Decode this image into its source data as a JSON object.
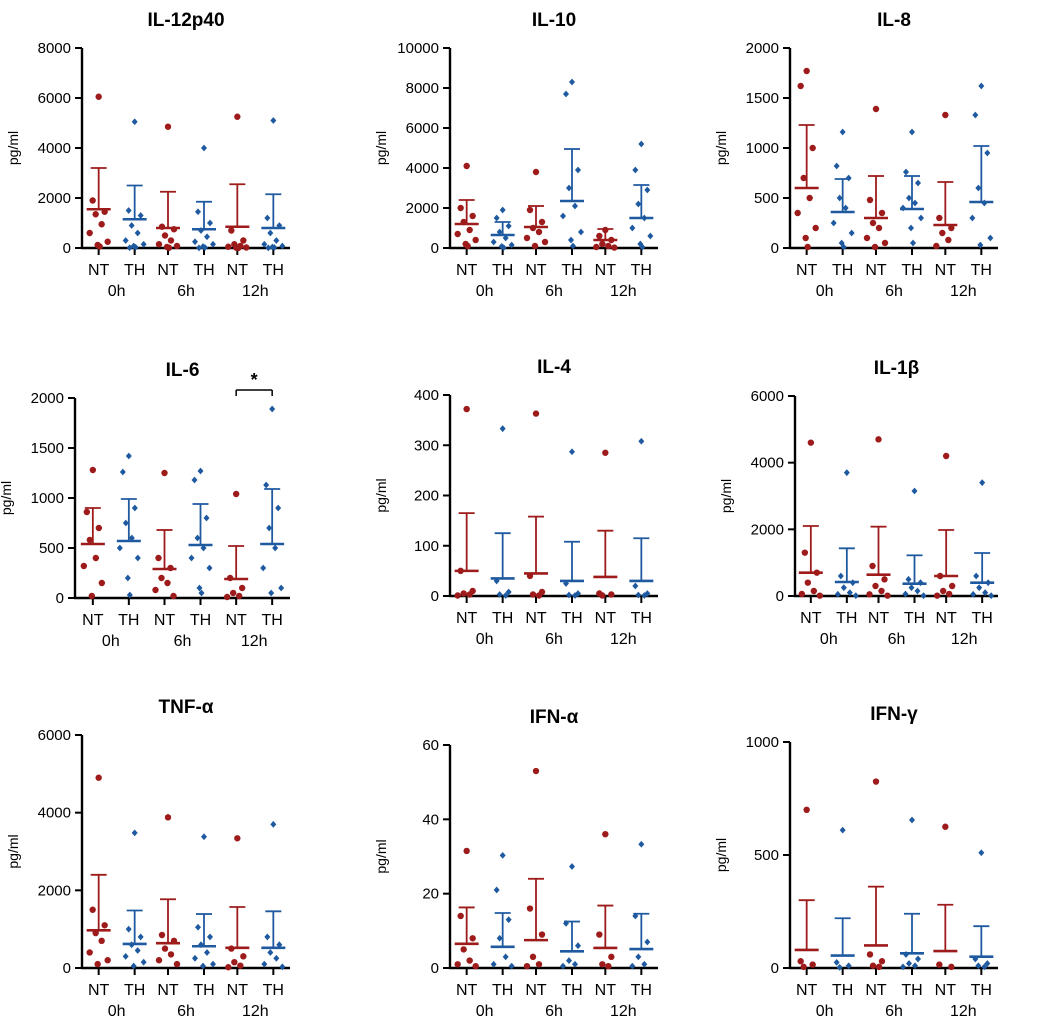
{
  "chart_data": [
    {
      "type": "scatter",
      "title": "IL-12p40",
      "ylabel": "pg/ml",
      "ylim": [
        0,
        8000
      ],
      "yticks": [
        "0",
        "2000",
        "4000",
        "6000",
        "8000"
      ],
      "categories": [
        "0h",
        "6h",
        "12h"
      ],
      "group_labels": [
        "NT",
        "TH"
      ],
      "colors": {
        "NT": "#9e1b1b",
        "TH": "#1f5aa0"
      },
      "groups": [
        {
          "time": "0h",
          "NT": {
            "mean": 1550,
            "sd_upper": 3200,
            "points": [
              6050,
              1900,
              1450,
              1350,
              950,
              600,
              250,
              120,
              60
            ]
          },
          "TH": {
            "mean": 1150,
            "sd_upper": 2500,
            "points": [
              5050,
              1500,
              1300,
              900,
              600,
              300,
              150,
              80,
              30,
              10
            ]
          }
        },
        {
          "time": "6h",
          "NT": {
            "mean": 800,
            "sd_upper": 2250,
            "points": [
              4850,
              850,
              750,
              500,
              300,
              150,
              80,
              40,
              10
            ]
          },
          "TH": {
            "mean": 750,
            "sd_upper": 1850,
            "points": [
              4000,
              1450,
              1000,
              700,
              450,
              250,
              150,
              60,
              20,
              5
            ]
          }
        },
        {
          "time": "12h",
          "NT": {
            "mean": 850,
            "sd_upper": 2550,
            "points": [
              5250,
              700,
              300,
              150,
              80,
              50,
              20,
              10,
              5
            ]
          },
          "TH": {
            "mean": 800,
            "sd_upper": 2150,
            "points": [
              5100,
              1200,
              900,
              600,
              300,
              150,
              80,
              40,
              20,
              5
            ]
          }
        }
      ],
      "significance": null
    },
    {
      "type": "scatter",
      "title": "IL-10",
      "ylabel": "pg/ml",
      "ylim": [
        0,
        10000
      ],
      "yticks": [
        "0",
        "2000",
        "4000",
        "6000",
        "8000",
        "10000"
      ],
      "categories": [
        "0h",
        "6h",
        "12h"
      ],
      "group_labels": [
        "NT",
        "TH"
      ],
      "colors": {
        "NT": "#9e1b1b",
        "TH": "#1f5aa0"
      },
      "groups": [
        {
          "time": "0h",
          "NT": {
            "mean": 1200,
            "sd_upper": 2400,
            "points": [
              4100,
              2000,
              1600,
              1300,
              900,
              700,
              400,
              200,
              100
            ]
          },
          "TH": {
            "mean": 650,
            "sd_upper": 1300,
            "points": [
              1900,
              1500,
              1100,
              800,
              500,
              300,
              150,
              80,
              20
            ]
          }
        },
        {
          "time": "6h",
          "NT": {
            "mean": 1050,
            "sd_upper": 2100,
            "points": [
              3800,
              1900,
              1300,
              1000,
              800,
              500,
              300,
              100
            ]
          },
          "TH": {
            "mean": 2350,
            "sd_upper": 4950,
            "points": [
              8300,
              7700,
              3900,
              3000,
              2100,
              1600,
              800,
              400,
              100
            ]
          }
        },
        {
          "time": "12h",
          "NT": {
            "mean": 400,
            "sd_upper": 950,
            "points": [
              900,
              600,
              400,
              200,
              100,
              50,
              20
            ]
          },
          "TH": {
            "mean": 1500,
            "sd_upper": 3150,
            "points": [
              5200,
              3900,
              2900,
              2200,
              1500,
              1000,
              600,
              200,
              50
            ]
          }
        }
      ],
      "significance": null
    },
    {
      "type": "scatter",
      "title": "IL-8",
      "ylabel": "pg/ml",
      "ylim": [
        0,
        2000
      ],
      "yticks": [
        "0",
        "500",
        "1000",
        "1500",
        "2000"
      ],
      "categories": [
        "0h",
        "6h",
        "12h"
      ],
      "group_labels": [
        "NT",
        "TH"
      ],
      "colors": {
        "NT": "#9e1b1b",
        "TH": "#1f5aa0"
      },
      "groups": [
        {
          "time": "0h",
          "NT": {
            "mean": 600,
            "sd_upper": 1230,
            "points": [
              1770,
              1620,
              1000,
              700,
              500,
              350,
              200,
              100,
              10
            ]
          },
          "TH": {
            "mean": 360,
            "sd_upper": 690,
            "points": [
              1160,
              820,
              700,
              500,
              400,
              250,
              150,
              50,
              10
            ]
          }
        },
        {
          "time": "6h",
          "NT": {
            "mean": 300,
            "sd_upper": 720,
            "points": [
              1390,
              480,
              350,
              250,
              200,
              100,
              50,
              10
            ]
          },
          "TH": {
            "mean": 390,
            "sd_upper": 720,
            "points": [
              1160,
              760,
              650,
              500,
              450,
              400,
              300,
              200,
              50
            ]
          }
        },
        {
          "time": "12h",
          "NT": {
            "mean": 230,
            "sd_upper": 660,
            "points": [
              1330,
              300,
              200,
              150,
              80,
              20
            ]
          },
          "TH": {
            "mean": 460,
            "sd_upper": 1020,
            "points": [
              1620,
              1330,
              950,
              600,
              450,
              300,
              100,
              30
            ]
          }
        }
      ],
      "significance": null
    },
    {
      "type": "scatter",
      "title": "IL-6",
      "ylabel": "pg/ml",
      "ylim": [
        0,
        2000
      ],
      "yticks": [
        "0",
        "500",
        "1000",
        "1500",
        "2000"
      ],
      "categories": [
        "0h",
        "6h",
        "12h"
      ],
      "group_labels": [
        "NT",
        "TH"
      ],
      "colors": {
        "NT": "#9e1b1b",
        "TH": "#1f5aa0"
      },
      "groups": [
        {
          "time": "0h",
          "NT": {
            "mean": 540,
            "sd_upper": 900,
            "points": [
              1280,
              860,
              700,
              580,
              400,
              320,
              150,
              20
            ]
          },
          "TH": {
            "mean": 570,
            "sd_upper": 990,
            "points": [
              1420,
              1260,
              900,
              750,
              600,
              500,
              400,
              200,
              30
            ]
          }
        },
        {
          "time": "6h",
          "NT": {
            "mean": 290,
            "sd_upper": 680,
            "points": [
              1250,
              400,
              300,
              200,
              150,
              80,
              20
            ]
          },
          "TH": {
            "mean": 530,
            "sd_upper": 940,
            "points": [
              1270,
              1180,
              800,
              600,
              500,
              400,
              300,
              100,
              50
            ]
          }
        },
        {
          "time": "12h",
          "NT": {
            "mean": 190,
            "sd_upper": 520,
            "points": [
              1040,
              200,
              100,
              50,
              20,
              10
            ]
          },
          "TH": {
            "mean": 540,
            "sd_upper": 1090,
            "points": [
              1890,
              1130,
              900,
              700,
              500,
              300,
              100,
              50
            ]
          }
        }
      ],
      "significance": {
        "time": "12h",
        "label": "*"
      }
    },
    {
      "type": "scatter",
      "title": "IL-4",
      "ylabel": "pg/ml",
      "ylim": [
        0,
        400
      ],
      "yticks": [
        "0",
        "100",
        "200",
        "300",
        "400"
      ],
      "categories": [
        "0h",
        "6h",
        "12h"
      ],
      "group_labels": [
        "NT",
        "TH"
      ],
      "colors": {
        "NT": "#9e1b1b",
        "TH": "#1f5aa0"
      },
      "groups": [
        {
          "time": "0h",
          "NT": {
            "mean": 50,
            "sd_upper": 165,
            "points": [
              372,
              50,
              10,
              5,
              3,
              1
            ]
          },
          "TH": {
            "mean": 35,
            "sd_upper": 125,
            "points": [
              333,
              30,
              8,
              3,
              1
            ]
          }
        },
        {
          "time": "6h",
          "NT": {
            "mean": 45,
            "sd_upper": 158,
            "points": [
              363,
              40,
              8,
              3,
              1
            ]
          },
          "TH": {
            "mean": 30,
            "sd_upper": 108,
            "points": [
              287,
              25,
              5,
              2,
              1
            ]
          }
        },
        {
          "time": "12h",
          "NT": {
            "mean": 38,
            "sd_upper": 130,
            "points": [
              285,
              5,
              3,
              1
            ]
          },
          "TH": {
            "mean": 30,
            "sd_upper": 115,
            "points": [
              308,
              20,
              5,
              2,
              1
            ]
          }
        }
      ],
      "significance": null
    },
    {
      "type": "scatter",
      "title": "IL-1β",
      "ylabel": "pg/ml",
      "ylim": [
        0,
        6000
      ],
      "yticks": [
        "0",
        "2000",
        "4000",
        "6000"
      ],
      "categories": [
        "0h",
        "6h",
        "12h"
      ],
      "group_labels": [
        "NT",
        "TH"
      ],
      "colors": {
        "NT": "#9e1b1b",
        "TH": "#1f5aa0"
      },
      "groups": [
        {
          "time": "0h",
          "NT": {
            "mean": 700,
            "sd_upper": 2100,
            "points": [
              4600,
              1300,
              700,
              400,
              150,
              60,
              10
            ]
          },
          "TH": {
            "mean": 420,
            "sd_upper": 1430,
            "points": [
              3700,
              600,
              400,
              250,
              100,
              50,
              10
            ]
          }
        },
        {
          "time": "6h",
          "NT": {
            "mean": 640,
            "sd_upper": 2080,
            "points": [
              4700,
              900,
              500,
              300,
              150,
              50,
              10
            ]
          },
          "TH": {
            "mean": 370,
            "sd_upper": 1220,
            "points": [
              3150,
              500,
              400,
              250,
              150,
              60,
              10
            ]
          }
        },
        {
          "time": "12h",
          "NT": {
            "mean": 600,
            "sd_upper": 1980,
            "points": [
              4200,
              600,
              300,
              150,
              60,
              10
            ]
          },
          "TH": {
            "mean": 400,
            "sd_upper": 1290,
            "points": [
              3400,
              600,
              400,
              250,
              100,
              50,
              10
            ]
          }
        }
      ],
      "significance": null
    },
    {
      "type": "scatter",
      "title": "TNF-α",
      "ylabel": "pg/ml",
      "ylim": [
        0,
        6000
      ],
      "yticks": [
        "0",
        "2000",
        "4000",
        "6000"
      ],
      "categories": [
        "0h",
        "6h",
        "12h"
      ],
      "group_labels": [
        "NT",
        "TH"
      ],
      "colors": {
        "NT": "#9e1b1b",
        "TH": "#1f5aa0"
      },
      "groups": [
        {
          "time": "0h",
          "NT": {
            "mean": 970,
            "sd_upper": 2400,
            "points": [
              4900,
              1500,
              1100,
              900,
              700,
              400,
              200,
              100
            ]
          },
          "TH": {
            "mean": 620,
            "sd_upper": 1480,
            "points": [
              3480,
              1000,
              800,
              600,
              450,
              300,
              150,
              50
            ]
          }
        },
        {
          "time": "6h",
          "NT": {
            "mean": 640,
            "sd_upper": 1770,
            "points": [
              3880,
              850,
              700,
              500,
              350,
              200,
              100
            ]
          },
          "TH": {
            "mean": 560,
            "sd_upper": 1390,
            "points": [
              3380,
              1050,
              800,
              600,
              400,
              250,
              100,
              50
            ]
          }
        },
        {
          "time": "12h",
          "NT": {
            "mean": 520,
            "sd_upper": 1570,
            "points": [
              3340,
              500,
              300,
              150,
              60,
              20
            ]
          },
          "TH": {
            "mean": 520,
            "sd_upper": 1460,
            "points": [
              3700,
              800,
              600,
              400,
              250,
              100,
              30
            ]
          }
        }
      ],
      "significance": null
    },
    {
      "type": "scatter",
      "title": "IFN-α",
      "ylabel": "pg/ml",
      "ylim": [
        0,
        60
      ],
      "yticks": [
        "0",
        "20",
        "40",
        "60"
      ],
      "categories": [
        "0h",
        "6h",
        "12h"
      ],
      "group_labels": [
        "NT",
        "TH"
      ],
      "colors": {
        "NT": "#9e1b1b",
        "TH": "#1f5aa0"
      },
      "groups": [
        {
          "time": "0h",
          "NT": {
            "mean": 6.5,
            "sd_upper": 16.3,
            "points": [
              31.5,
              14,
              8,
              5,
              2,
              1,
              0.5
            ]
          },
          "TH": {
            "mean": 5.7,
            "sd_upper": 14.8,
            "points": [
              30.3,
              21,
              13,
              8,
              3,
              1,
              0.5
            ]
          }
        },
        {
          "time": "6h",
          "NT": {
            "mean": 7.5,
            "sd_upper": 24,
            "points": [
              53,
              16,
              9,
              3,
              1,
              0.5
            ]
          },
          "TH": {
            "mean": 4.5,
            "sd_upper": 12.5,
            "points": [
              27.3,
              12,
              6,
              2,
              1,
              0.5
            ]
          }
        },
        {
          "time": "12h",
          "NT": {
            "mean": 5.4,
            "sd_upper": 16.8,
            "points": [
              36,
              9,
              3,
              1,
              0.5
            ]
          },
          "TH": {
            "mean": 5.1,
            "sd_upper": 14.6,
            "points": [
              33.3,
              14,
              7,
              3,
              1,
              0.5
            ]
          }
        }
      ],
      "significance": null
    },
    {
      "type": "scatter",
      "title": "IFN-γ",
      "ylabel": "pg/ml",
      "ylim": [
        0,
        1000
      ],
      "yticks": [
        "0",
        "500",
        "1000"
      ],
      "categories": [
        "0h",
        "6h",
        "12h"
      ],
      "group_labels": [
        "NT",
        "TH"
      ],
      "colors": {
        "NT": "#9e1b1b",
        "TH": "#1f5aa0"
      },
      "groups": [
        {
          "time": "0h",
          "NT": {
            "mean": 80,
            "sd_upper": 300,
            "points": [
              700,
              30,
              15,
              5
            ]
          },
          "TH": {
            "mean": 55,
            "sd_upper": 220,
            "points": [
              610,
              25,
              10,
              3
            ]
          }
        },
        {
          "time": "6h",
          "NT": {
            "mean": 100,
            "sd_upper": 360,
            "points": [
              825,
              60,
              30,
              10,
              5
            ]
          },
          "TH": {
            "mean": 65,
            "sd_upper": 240,
            "points": [
              655,
              60,
              40,
              20,
              10,
              5
            ]
          }
        },
        {
          "time": "12h",
          "NT": {
            "mean": 75,
            "sd_upper": 280,
            "points": [
              625,
              15,
              5
            ]
          },
          "TH": {
            "mean": 50,
            "sd_upper": 185,
            "points": [
              510,
              40,
              20,
              10,
              5
            ]
          }
        }
      ],
      "significance": null
    }
  ]
}
